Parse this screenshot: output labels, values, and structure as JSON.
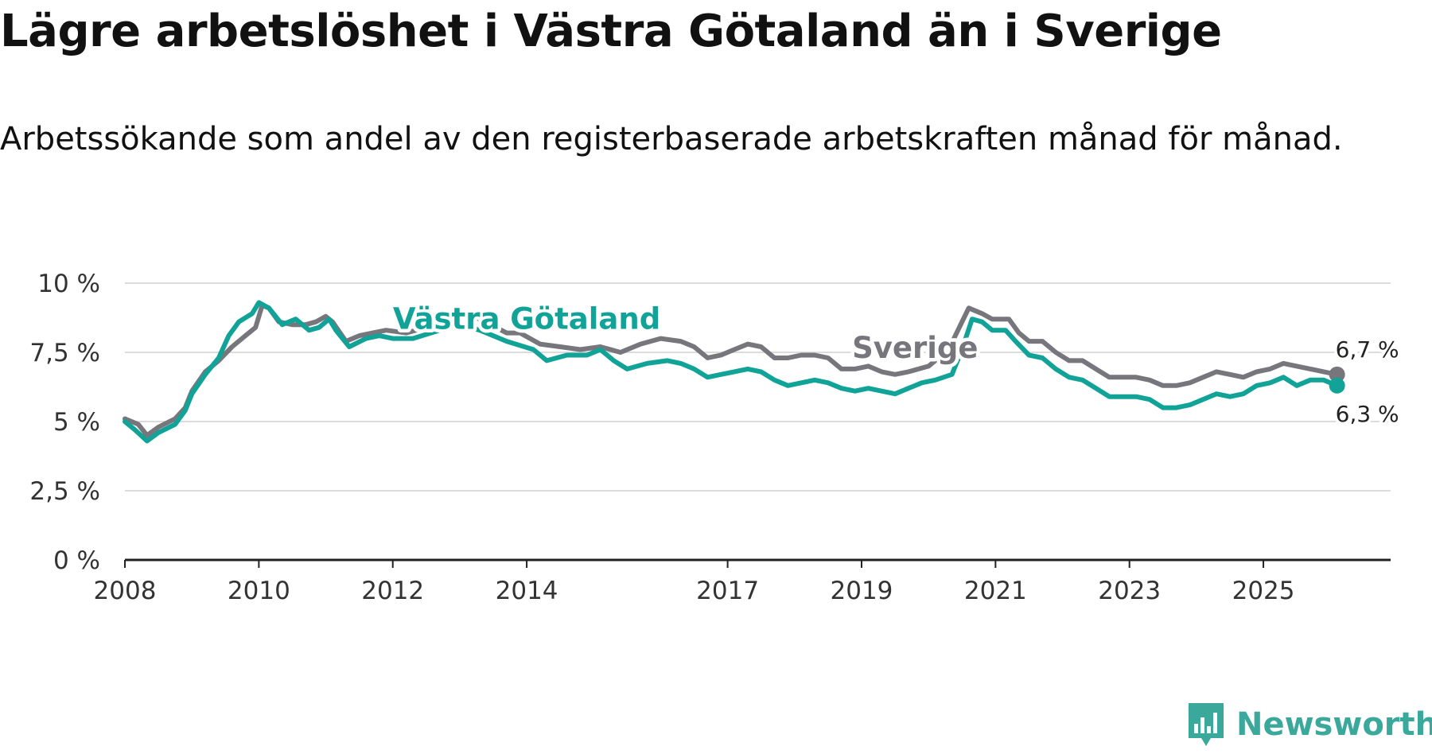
{
  "title": "Lägre arbetslöshet i Västra Götaland än i Sverige",
  "subtitle": "Arbetssökande som andel av den registerbaserade arbetskraften månad för månad.",
  "brand": {
    "name": "Newsworthy",
    "color": "#3aa89a",
    "icon": "newsworthy-bar-chart-icon"
  },
  "chart_data": {
    "type": "line",
    "title": "Lägre arbetslöshet i Västra Götaland än i Sverige",
    "xlabel": "",
    "ylabel": "",
    "ylim": [
      0,
      10
    ],
    "xlim": [
      2008,
      2026.9
    ],
    "y_ticks": [
      0,
      2.5,
      5,
      7.5,
      10
    ],
    "y_tick_labels": [
      "0 %",
      "2,5 %",
      "5 %",
      "7,5 %",
      "10 %"
    ],
    "x_ticks": [
      2008,
      2010,
      2012,
      2014,
      2017,
      2019,
      2021,
      2023,
      2025
    ],
    "x_tick_labels": [
      "2008",
      "2010",
      "2012",
      "2014",
      "2017",
      "2019",
      "2021",
      "2023",
      "2025"
    ],
    "grid": true,
    "series": [
      {
        "name": "Sverige",
        "color": "#77767c",
        "end_label": "6,7 %",
        "points": [
          [
            2008.0,
            5.1
          ],
          [
            2008.2,
            4.9
          ],
          [
            2008.33,
            4.5
          ],
          [
            2008.5,
            4.8
          ],
          [
            2008.75,
            5.1
          ],
          [
            2008.9,
            5.5
          ],
          [
            2009.0,
            6.1
          ],
          [
            2009.2,
            6.8
          ],
          [
            2009.4,
            7.2
          ],
          [
            2009.6,
            7.7
          ],
          [
            2009.8,
            8.1
          ],
          [
            2009.95,
            8.4
          ],
          [
            2010.0,
            8.8
          ],
          [
            2010.05,
            9.2
          ],
          [
            2010.15,
            9.1
          ],
          [
            2010.3,
            8.6
          ],
          [
            2010.5,
            8.5
          ],
          [
            2010.7,
            8.5
          ],
          [
            2010.85,
            8.6
          ],
          [
            2011.0,
            8.8
          ],
          [
            2011.1,
            8.6
          ],
          [
            2011.3,
            7.9
          ],
          [
            2011.5,
            8.1
          ],
          [
            2011.7,
            8.2
          ],
          [
            2011.9,
            8.3
          ],
          [
            2012.2,
            8.2
          ],
          [
            2012.5,
            8.4
          ],
          [
            2012.9,
            8.8
          ],
          [
            2013.1,
            8.9
          ],
          [
            2013.3,
            8.7
          ],
          [
            2013.7,
            8.2
          ],
          [
            2013.9,
            8.2
          ],
          [
            2014.2,
            7.8
          ],
          [
            2014.5,
            7.7
          ],
          [
            2014.8,
            7.6
          ],
          [
            2015.1,
            7.7
          ],
          [
            2015.4,
            7.5
          ],
          [
            2015.7,
            7.8
          ],
          [
            2016.0,
            8.0
          ],
          [
            2016.3,
            7.9
          ],
          [
            2016.5,
            7.7
          ],
          [
            2016.7,
            7.3
          ],
          [
            2016.9,
            7.4
          ],
          [
            2017.1,
            7.6
          ],
          [
            2017.3,
            7.8
          ],
          [
            2017.5,
            7.7
          ],
          [
            2017.7,
            7.3
          ],
          [
            2017.9,
            7.3
          ],
          [
            2018.1,
            7.4
          ],
          [
            2018.3,
            7.4
          ],
          [
            2018.5,
            7.3
          ],
          [
            2018.7,
            6.9
          ],
          [
            2018.9,
            6.9
          ],
          [
            2019.1,
            7.0
          ],
          [
            2019.3,
            6.8
          ],
          [
            2019.5,
            6.7
          ],
          [
            2019.7,
            6.8
          ],
          [
            2020.0,
            7.0
          ],
          [
            2020.3,
            7.6
          ],
          [
            2020.5,
            8.6
          ],
          [
            2020.6,
            9.1
          ],
          [
            2020.8,
            8.9
          ],
          [
            2020.95,
            8.7
          ],
          [
            2021.2,
            8.7
          ],
          [
            2021.35,
            8.2
          ],
          [
            2021.5,
            7.9
          ],
          [
            2021.7,
            7.9
          ],
          [
            2021.9,
            7.5
          ],
          [
            2022.1,
            7.2
          ],
          [
            2022.3,
            7.2
          ],
          [
            2022.5,
            6.9
          ],
          [
            2022.7,
            6.6
          ],
          [
            2022.9,
            6.6
          ],
          [
            2023.1,
            6.6
          ],
          [
            2023.3,
            6.5
          ],
          [
            2023.5,
            6.3
          ],
          [
            2023.7,
            6.3
          ],
          [
            2023.9,
            6.4
          ],
          [
            2024.1,
            6.6
          ],
          [
            2024.3,
            6.8
          ],
          [
            2024.5,
            6.7
          ],
          [
            2024.7,
            6.6
          ],
          [
            2024.9,
            6.8
          ],
          [
            2025.1,
            6.9
          ],
          [
            2025.3,
            7.1
          ],
          [
            2025.5,
            7.0
          ],
          [
            2025.7,
            6.9
          ],
          [
            2025.9,
            6.8
          ],
          [
            2026.1,
            6.7
          ]
        ]
      },
      {
        "name": "Västra Götaland",
        "color": "#11a398",
        "end_label": "6,3 %",
        "points": [
          [
            2008.0,
            5.0
          ],
          [
            2008.15,
            4.7
          ],
          [
            2008.33,
            4.3
          ],
          [
            2008.5,
            4.6
          ],
          [
            2008.75,
            4.9
          ],
          [
            2008.9,
            5.4
          ],
          [
            2009.0,
            6.0
          ],
          [
            2009.2,
            6.7
          ],
          [
            2009.4,
            7.3
          ],
          [
            2009.55,
            8.1
          ],
          [
            2009.7,
            8.6
          ],
          [
            2009.9,
            8.9
          ],
          [
            2010.0,
            9.3
          ],
          [
            2010.15,
            9.1
          ],
          [
            2010.35,
            8.5
          ],
          [
            2010.55,
            8.7
          ],
          [
            2010.75,
            8.3
          ],
          [
            2010.9,
            8.4
          ],
          [
            2011.05,
            8.7
          ],
          [
            2011.15,
            8.3
          ],
          [
            2011.35,
            7.7
          ],
          [
            2011.6,
            8.0
          ],
          [
            2011.8,
            8.1
          ],
          [
            2012.0,
            8.0
          ],
          [
            2012.3,
            8.0
          ],
          [
            2012.7,
            8.3
          ],
          [
            2013.0,
            8.5
          ],
          [
            2013.3,
            8.3
          ],
          [
            2013.7,
            7.9
          ],
          [
            2014.1,
            7.6
          ],
          [
            2014.3,
            7.2
          ],
          [
            2014.6,
            7.4
          ],
          [
            2014.9,
            7.4
          ],
          [
            2015.1,
            7.6
          ],
          [
            2015.3,
            7.2
          ],
          [
            2015.5,
            6.9
          ],
          [
            2015.8,
            7.1
          ],
          [
            2016.1,
            7.2
          ],
          [
            2016.3,
            7.1
          ],
          [
            2016.5,
            6.9
          ],
          [
            2016.7,
            6.6
          ],
          [
            2016.9,
            6.7
          ],
          [
            2017.1,
            6.8
          ],
          [
            2017.3,
            6.9
          ],
          [
            2017.5,
            6.8
          ],
          [
            2017.7,
            6.5
          ],
          [
            2017.9,
            6.3
          ],
          [
            2018.1,
            6.4
          ],
          [
            2018.3,
            6.5
          ],
          [
            2018.5,
            6.4
          ],
          [
            2018.7,
            6.2
          ],
          [
            2018.9,
            6.1
          ],
          [
            2019.1,
            6.2
          ],
          [
            2019.3,
            6.1
          ],
          [
            2019.5,
            6.0
          ],
          [
            2019.7,
            6.2
          ],
          [
            2019.9,
            6.4
          ],
          [
            2020.1,
            6.5
          ],
          [
            2020.35,
            6.7
          ],
          [
            2020.5,
            7.6
          ],
          [
            2020.65,
            8.7
          ],
          [
            2020.8,
            8.6
          ],
          [
            2020.95,
            8.3
          ],
          [
            2021.15,
            8.3
          ],
          [
            2021.3,
            7.9
          ],
          [
            2021.5,
            7.4
          ],
          [
            2021.7,
            7.3
          ],
          [
            2021.9,
            6.9
          ],
          [
            2022.1,
            6.6
          ],
          [
            2022.3,
            6.5
          ],
          [
            2022.5,
            6.2
          ],
          [
            2022.7,
            5.9
          ],
          [
            2022.9,
            5.9
          ],
          [
            2023.1,
            5.9
          ],
          [
            2023.3,
            5.8
          ],
          [
            2023.5,
            5.5
          ],
          [
            2023.7,
            5.5
          ],
          [
            2023.9,
            5.6
          ],
          [
            2024.1,
            5.8
          ],
          [
            2024.3,
            6.0
          ],
          [
            2024.5,
            5.9
          ],
          [
            2024.7,
            6.0
          ],
          [
            2024.9,
            6.3
          ],
          [
            2025.1,
            6.4
          ],
          [
            2025.3,
            6.6
          ],
          [
            2025.5,
            6.3
          ],
          [
            2025.7,
            6.5
          ],
          [
            2025.9,
            6.5
          ],
          [
            2026.1,
            6.3
          ]
        ]
      }
    ],
    "annotations": [
      {
        "series": "Västra Götaland",
        "text": "Västra Götaland",
        "x": 2014.0,
        "y": 8.35
      },
      {
        "series": "Sverige",
        "text": "Sverige",
        "x": 2019.8,
        "y": 7.3
      }
    ]
  }
}
